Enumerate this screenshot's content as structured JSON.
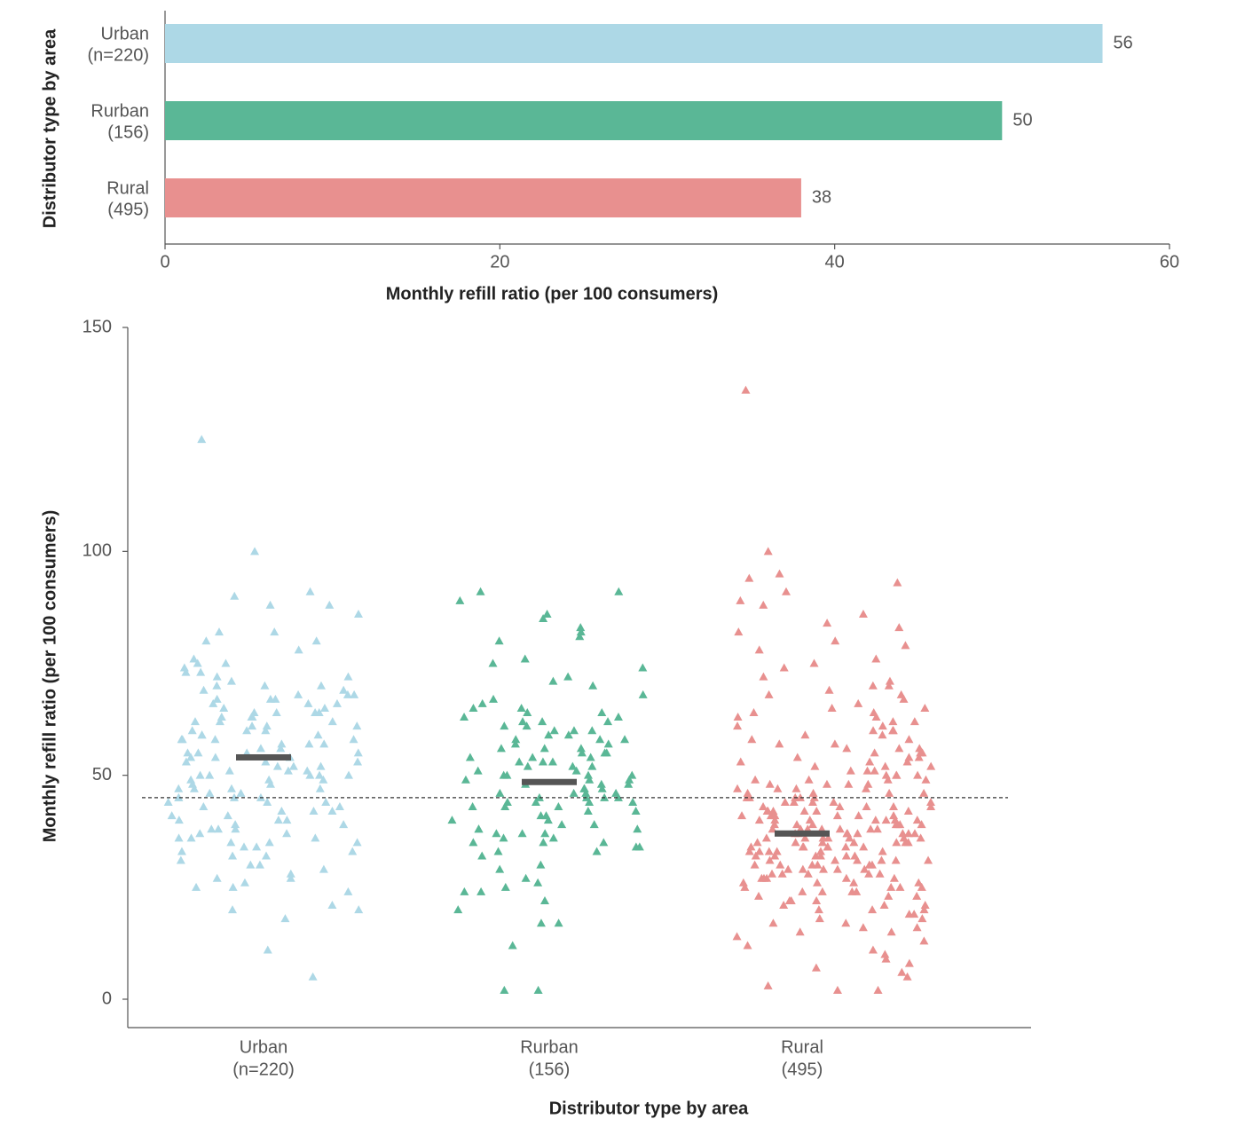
{
  "chart_data": [
    {
      "type": "hbar",
      "categories": [
        [
          "Urban",
          "(n=220)"
        ],
        [
          "Rurban",
          "(156)"
        ],
        [
          "Rural",
          "(495)"
        ]
      ],
      "values": [
        56,
        50,
        38
      ],
      "colors": [
        "#add8e6",
        "#5ab796",
        "#e8908f"
      ],
      "xlim": [
        0,
        60
      ],
      "xticks": [
        0,
        20,
        40,
        60
      ],
      "xlabel": "Monthly refill ratio (per 100 consumers)",
      "ylabel": "Distributor type by area"
    },
    {
      "type": "strip",
      "categories": [
        [
          "Urban",
          "(n=220)"
        ],
        [
          "Rurban",
          "(156)"
        ],
        [
          "Rural",
          "(495)"
        ]
      ],
      "series": [
        {
          "color": "#add8e6",
          "values": [
            125,
            100,
            5,
            11,
            18,
            20,
            20,
            21,
            24,
            25,
            25,
            26,
            27,
            27,
            28,
            29,
            30,
            30,
            31,
            32,
            32,
            33,
            33,
            34,
            34,
            35,
            35,
            35,
            36,
            36,
            37,
            37,
            38,
            38,
            39,
            39,
            40,
            40,
            40,
            41,
            41,
            42,
            42,
            43,
            43,
            44,
            44,
            45,
            45,
            45,
            46,
            46,
            47,
            47,
            47,
            48,
            48,
            49,
            49,
            50,
            50,
            50,
            50,
            51,
            51,
            52,
            52,
            53,
            53,
            54,
            54,
            54,
            55,
            55,
            55,
            56,
            56,
            57,
            57,
            58,
            58,
            58,
            59,
            59,
            60,
            60,
            61,
            61,
            62,
            62,
            63,
            63,
            64,
            64,
            64,
            65,
            65,
            66,
            66,
            67,
            67,
            67,
            68,
            68,
            69,
            69,
            70,
            70,
            71,
            72,
            72,
            73,
            73,
            74,
            75,
            75,
            76,
            78,
            80,
            80,
            82,
            82,
            86,
            88,
            88,
            90,
            91,
            45,
            52,
            60,
            38,
            49,
            57,
            63,
            66,
            44,
            51,
            59,
            70,
            42,
            36,
            55,
            62,
            68,
            47,
            53,
            64,
            58,
            50,
            61
          ]
        },
        {
          "color": "#5ab796",
          "values": [
            2,
            2,
            12,
            17,
            17,
            20,
            22,
            24,
            24,
            25,
            26,
            27,
            29,
            30,
            32,
            33,
            33,
            34,
            34,
            35,
            35,
            36,
            36,
            37,
            37,
            37,
            38,
            38,
            39,
            39,
            40,
            40,
            41,
            41,
            42,
            42,
            43,
            43,
            44,
            44,
            44,
            45,
            45,
            45,
            46,
            46,
            46,
            47,
            47,
            48,
            48,
            48,
            49,
            49,
            50,
            50,
            50,
            51,
            51,
            52,
            52,
            53,
            53,
            54,
            54,
            55,
            55,
            55,
            56,
            56,
            57,
            57,
            58,
            58,
            59,
            59,
            60,
            60,
            60,
            61,
            61,
            62,
            62,
            63,
            63,
            64,
            64,
            65,
            65,
            66,
            67,
            68,
            70,
            71,
            72,
            74,
            75,
            76,
            80,
            81,
            82,
            83,
            85,
            86,
            89,
            91,
            91,
            44,
            47,
            52,
            56,
            43,
            49,
            54,
            38,
            46,
            58,
            50,
            45,
            53,
            35,
            62
          ]
        },
        {
          "color": "#e8908f",
          "values": [
            136,
            100,
            95,
            94,
            93,
            91,
            89,
            88,
            86,
            84,
            83,
            82,
            80,
            79,
            78,
            76,
            75,
            74,
            72,
            71,
            70,
            70,
            69,
            68,
            68,
            67,
            66,
            65,
            65,
            64,
            64,
            63,
            63,
            62,
            62,
            61,
            61,
            60,
            60,
            60,
            59,
            59,
            58,
            58,
            57,
            57,
            56,
            56,
            56,
            55,
            55,
            55,
            54,
            54,
            54,
            53,
            53,
            53,
            52,
            52,
            52,
            51,
            51,
            51,
            50,
            50,
            50,
            50,
            49,
            49,
            49,
            49,
            48,
            48,
            48,
            48,
            47,
            47,
            47,
            47,
            46,
            46,
            46,
            46,
            45,
            45,
            45,
            45,
            45,
            44,
            44,
            44,
            44,
            44,
            43,
            43,
            43,
            43,
            43,
            42,
            42,
            42,
            42,
            42,
            42,
            41,
            41,
            41,
            41,
            41,
            41,
            40,
            40,
            40,
            40,
            40,
            40,
            40,
            39,
            39,
            39,
            39,
            39,
            39,
            39,
            38,
            38,
            38,
            38,
            38,
            38,
            38,
            37,
            37,
            37,
            37,
            37,
            37,
            37,
            37,
            36,
            36,
            36,
            36,
            36,
            36,
            36,
            35,
            35,
            35,
            35,
            35,
            35,
            35,
            34,
            34,
            34,
            34,
            34,
            34,
            34,
            33,
            33,
            33,
            33,
            33,
            33,
            32,
            32,
            32,
            32,
            32,
            32,
            31,
            31,
            31,
            31,
            31,
            31,
            30,
            30,
            30,
            30,
            30,
            30,
            29,
            29,
            29,
            29,
            29,
            28,
            28,
            28,
            28,
            28,
            27,
            27,
            27,
            27,
            27,
            26,
            26,
            26,
            26,
            25,
            25,
            25,
            25,
            24,
            24,
            24,
            24,
            23,
            23,
            23,
            22,
            22,
            22,
            21,
            21,
            21,
            20,
            20,
            20,
            19,
            19,
            18,
            18,
            17,
            17,
            16,
            16,
            15,
            15,
            14,
            13,
            12,
            11,
            10,
            9,
            8,
            7,
            6,
            5,
            3,
            2,
            2
          ]
        }
      ],
      "means": [
        54,
        48.5,
        37
      ],
      "reference_line": 45,
      "ylim": [
        0,
        150
      ],
      "yticks": [
        0,
        50,
        100,
        150
      ],
      "xlabel": "Distributor type by area",
      "ylabel": "Monthly refill ratio (per 100 consumers)"
    }
  ]
}
